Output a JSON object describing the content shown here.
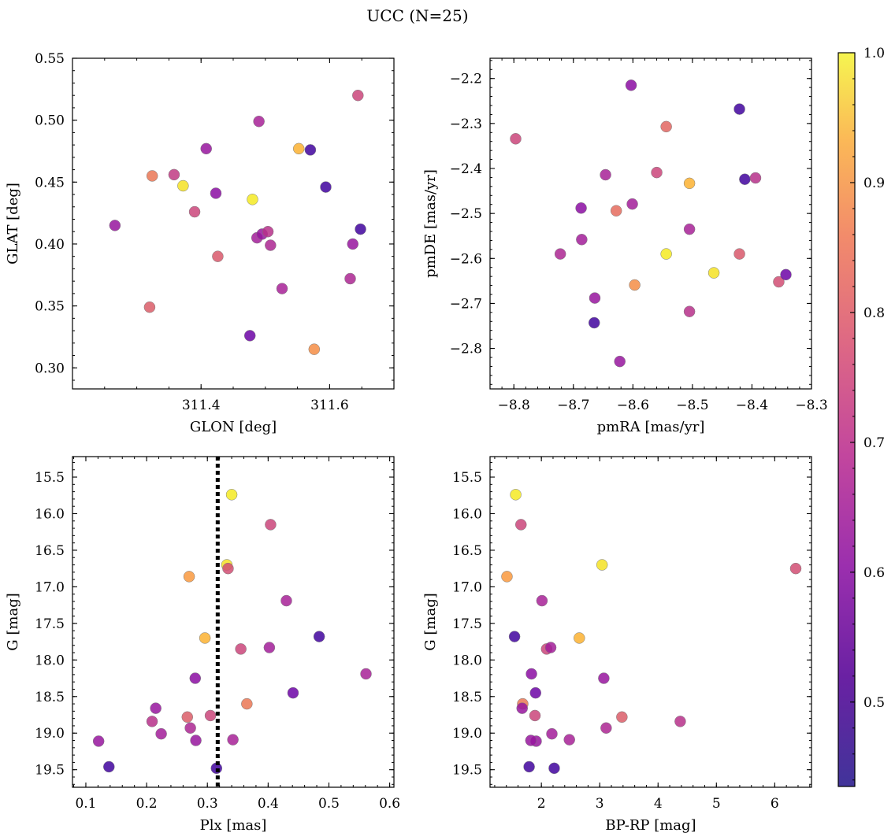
{
  "title": "UCC (N=25)",
  "colors": {
    "colormap": "plasma",
    "marker_edge": "#7a7a7a",
    "dotted_line": "#000000"
  },
  "colorbar": {
    "range": [
      0.435,
      1.0
    ],
    "ticks": [
      0.5,
      0.6,
      0.7,
      0.8,
      0.9,
      1.0
    ],
    "tick_labels": [
      "0.5",
      "0.6",
      "0.7",
      "0.8",
      "0.9",
      "1.0"
    ]
  },
  "chart_data": [
    {
      "type": "scatter",
      "xlabel": "GLON [deg]",
      "ylabel": "GLAT [deg]",
      "xlim": [
        311.2,
        311.7
      ],
      "ylim": [
        0.283,
        0.55
      ],
      "xticks": [
        311.4,
        311.6
      ],
      "xtick_labels": [
        "311.4",
        "311.6"
      ],
      "yticks": [
        0.3,
        0.35,
        0.4,
        0.45,
        0.5,
        0.55
      ],
      "ytick_labels": [
        "0.30",
        "0.35",
        "0.40",
        "0.45",
        "0.50",
        "0.55"
      ],
      "x": [
        311.266,
        311.324,
        311.32,
        311.358,
        311.372,
        311.39,
        311.408,
        311.426,
        311.423,
        311.476,
        311.48,
        311.487,
        311.49,
        311.495,
        311.504,
        311.508,
        311.526,
        311.552,
        311.57,
        311.576,
        311.594,
        311.632,
        311.636,
        311.644,
        311.648
      ],
      "y": [
        0.415,
        0.455,
        0.349,
        0.456,
        0.447,
        0.426,
        0.477,
        0.39,
        0.441,
        0.326,
        0.436,
        0.405,
        0.499,
        0.408,
        0.41,
        0.399,
        0.364,
        0.477,
        0.476,
        0.315,
        0.446,
        0.372,
        0.4,
        0.52,
        0.412
      ],
      "c": [
        0.6,
        0.8,
        0.75,
        0.68,
        0.97,
        0.7,
        0.6,
        0.74,
        0.58,
        0.53,
        0.98,
        0.62,
        0.63,
        0.6,
        0.66,
        0.64,
        0.63,
        0.9,
        0.47,
        0.84,
        0.47,
        0.64,
        0.6,
        0.7,
        0.47
      ]
    },
    {
      "type": "scatter",
      "xlabel": "pmRA [mas/yr]",
      "ylabel": "pmDE [mas/yr]",
      "xlim": [
        -8.84,
        -8.3
      ],
      "ylim": [
        -2.89,
        -2.155
      ],
      "xticks": [
        -8.8,
        -8.7,
        -8.6,
        -8.5,
        -8.4,
        -8.3
      ],
      "xtick_labels": [
        "−8.8",
        "−8.7",
        "−8.6",
        "−8.5",
        "−8.4",
        "−8.3"
      ],
      "yticks": [
        -2.8,
        -2.7,
        -2.6,
        -2.5,
        -2.4,
        -2.3,
        -2.2
      ],
      "ytick_labels": [
        "−2.8",
        "−2.7",
        "−2.6",
        "−2.5",
        "−2.4",
        "−2.3",
        "−2.2"
      ],
      "x": [
        -8.797,
        -8.722,
        -8.687,
        -8.686,
        -8.664,
        -8.665,
        -8.646,
        -8.628,
        -8.622,
        -8.603,
        -8.601,
        -8.597,
        -8.56,
        -8.544,
        -8.544,
        -8.505,
        -8.505,
        -8.505,
        -8.464,
        -8.421,
        -8.421,
        -8.412,
        -8.394,
        -8.355,
        -8.343
      ],
      "y": [
        -2.334,
        -2.59,
        -2.488,
        -2.558,
        -2.688,
        -2.743,
        -2.414,
        -2.494,
        -2.829,
        -2.215,
        -2.479,
        -2.659,
        -2.409,
        -2.307,
        -2.59,
        -2.433,
        -2.535,
        -2.718,
        -2.632,
        -2.268,
        -2.59,
        -2.424,
        -2.421,
        -2.652,
        -2.636
      ],
      "c": [
        0.7,
        0.64,
        0.58,
        0.62,
        0.6,
        0.47,
        0.63,
        0.78,
        0.6,
        0.58,
        0.62,
        0.84,
        0.7,
        0.77,
        0.98,
        0.9,
        0.63,
        0.66,
        0.97,
        0.47,
        0.74,
        0.47,
        0.66,
        0.72,
        0.53
      ]
    },
    {
      "type": "scatter",
      "xlabel": "Plx [mas]",
      "ylabel": "G [mag]",
      "xlim": [
        0.078,
        0.607
      ],
      "ylim": [
        19.74,
        15.22
      ],
      "y_inverted": true,
      "xticks": [
        0.1,
        0.2,
        0.3,
        0.4,
        0.5,
        0.6
      ],
      "xtick_labels": [
        "0.1",
        "0.2",
        "0.3",
        "0.4",
        "0.5",
        "0.6"
      ],
      "yticks": [
        15.5,
        16.0,
        16.5,
        17.0,
        17.5,
        18.0,
        18.5,
        19.0,
        19.5
      ],
      "ytick_labels": [
        "15.5",
        "16.0",
        "16.5",
        "17.0",
        "17.5",
        "18.0",
        "18.5",
        "19.0",
        "19.5"
      ],
      "vline_x": 0.317,
      "x": [
        0.34,
        0.404,
        0.332,
        0.334,
        0.27,
        0.43,
        0.296,
        0.484,
        0.355,
        0.402,
        0.561,
        0.28,
        0.441,
        0.365,
        0.215,
        0.267,
        0.305,
        0.209,
        0.272,
        0.224,
        0.121,
        0.281,
        0.342,
        0.138,
        0.315
      ],
      "y": [
        15.74,
        16.15,
        16.7,
        16.75,
        16.86,
        17.19,
        17.7,
        17.68,
        17.85,
        17.83,
        18.19,
        18.25,
        18.45,
        18.6,
        18.66,
        18.78,
        18.76,
        18.84,
        18.93,
        19.01,
        19.11,
        19.1,
        19.09,
        19.46,
        19.48
      ],
      "c": [
        0.98,
        0.7,
        0.97,
        0.72,
        0.86,
        0.63,
        0.9,
        0.47,
        0.7,
        0.62,
        0.63,
        0.58,
        0.53,
        0.8,
        0.6,
        0.75,
        0.7,
        0.66,
        0.64,
        0.62,
        0.6,
        0.6,
        0.63,
        0.47,
        0.47
      ],
      "series": [
        {
          "name": "",
          "values": []
        }
      ]
    },
    {
      "type": "scatter",
      "xlabel": "BP-RP [mag]",
      "ylabel": "G [mag]",
      "xlim": [
        1.12,
        6.63
      ],
      "ylim": [
        19.74,
        15.22
      ],
      "y_inverted": true,
      "xticks": [
        2,
        3,
        4,
        5,
        6
      ],
      "xtick_labels": [
        "2",
        "3",
        "4",
        "5",
        "6"
      ],
      "yticks": [
        15.5,
        16.0,
        16.5,
        17.0,
        17.5,
        18.0,
        18.5,
        19.0,
        19.5
      ],
      "ytick_labels": [
        "15.5",
        "16.0",
        "16.5",
        "17.0",
        "17.5",
        "18.0",
        "18.5",
        "19.0",
        "19.5"
      ],
      "x": [
        1.56,
        1.65,
        3.04,
        6.36,
        1.41,
        2.01,
        2.65,
        1.54,
        2.09,
        2.16,
        1.83,
        3.07,
        1.9,
        1.68,
        1.67,
        3.38,
        1.89,
        4.38,
        3.11,
        2.18,
        1.91,
        1.82,
        2.48,
        1.79,
        2.22
      ],
      "y": [
        15.74,
        16.15,
        16.7,
        16.75,
        16.86,
        17.19,
        17.7,
        17.68,
        17.85,
        17.83,
        18.19,
        18.25,
        18.45,
        18.6,
        18.66,
        18.78,
        18.76,
        18.84,
        18.93,
        19.01,
        19.11,
        19.1,
        19.09,
        19.46,
        19.48
      ],
      "c": [
        0.98,
        0.7,
        0.97,
        0.72,
        0.86,
        0.63,
        0.9,
        0.47,
        0.7,
        0.62,
        0.58,
        0.6,
        0.53,
        0.8,
        0.6,
        0.75,
        0.7,
        0.66,
        0.64,
        0.62,
        0.6,
        0.6,
        0.63,
        0.47,
        0.47
      ]
    }
  ]
}
